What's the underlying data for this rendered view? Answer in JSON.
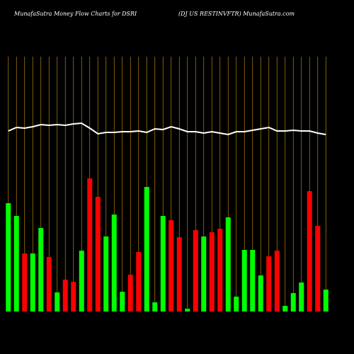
{
  "chart_data": {
    "type": "bar",
    "title": "MunafaSutra  Money Flow  Charts for DSRI",
    "subtitle": "(DJ US RESTINVFTR) MunafaSutra.com",
    "ylim": [
      0,
      360
    ],
    "grid": true,
    "grid_color": "#b8860b",
    "series": [
      {
        "name": "Money Flow",
        "values": [
          153,
          135,
          82,
          82,
          118,
          77,
          27,
          45,
          42,
          86,
          188,
          162,
          106,
          137,
          28,
          52,
          84,
          176,
          13,
          135,
          129,
          105,
          4,
          115,
          106,
          112,
          117,
          133,
          21,
          87,
          87,
          51,
          78,
          86,
          8,
          26,
          41,
          170,
          121,
          31
        ],
        "colors": [
          "#00ff00",
          "#00ff00",
          "#ff0000",
          "#00ff00",
          "#00ff00",
          "#ff0000",
          "#00ff00",
          "#ff0000",
          "#ff0000",
          "#00ff00",
          "#ff0000",
          "#ff0000",
          "#00ff00",
          "#00ff00",
          "#00ff00",
          "#ff0000",
          "#ff0000",
          "#00ff00",
          "#00ff00",
          "#00ff00",
          "#ff0000",
          "#ff0000",
          "#00ff00",
          "#ff0000",
          "#00ff00",
          "#ff0000",
          "#ff0000",
          "#00ff00",
          "#00ff00",
          "#00ff00",
          "#00ff00",
          "#00ff00",
          "#ff0000",
          "#ff0000",
          "#00ff00",
          "#00ff00",
          "#00ff00",
          "#ff0000",
          "#ff0000",
          "#00ff00"
        ]
      },
      {
        "name": "Price",
        "type": "line",
        "color": "#ffffff",
        "values": [
          255,
          260,
          259,
          261,
          264,
          263,
          264,
          263,
          265,
          266,
          259,
          251,
          253,
          253,
          254,
          254,
          255,
          253,
          258,
          257,
          261,
          258,
          254,
          254,
          252,
          254,
          252,
          250,
          254,
          254,
          256,
          258,
          260,
          255,
          255,
          256,
          255,
          255,
          252,
          250
        ]
      }
    ]
  }
}
